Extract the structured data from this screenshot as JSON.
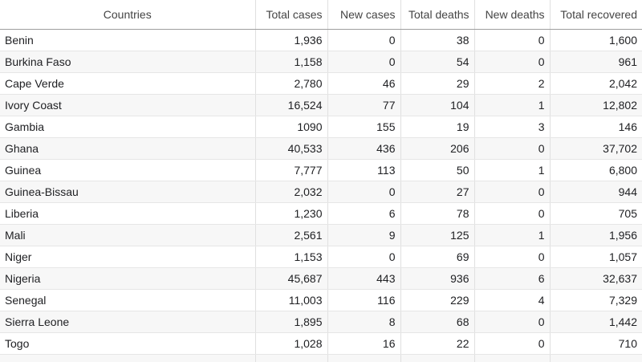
{
  "chart_data": {
    "type": "table",
    "columns": [
      "Countries",
      "Total cases",
      "New cases",
      "Total deaths",
      "New deaths",
      "Total recovered"
    ],
    "rows": [
      [
        "Benin",
        "1,936",
        "0",
        "38",
        "0",
        "1,600"
      ],
      [
        "Burkina Faso",
        "1,158",
        "0",
        "54",
        "0",
        "961"
      ],
      [
        "Cape Verde",
        "2,780",
        "46",
        "29",
        "2",
        "2,042"
      ],
      [
        "Ivory Coast",
        "16,524",
        "77",
        "104",
        "1",
        "12,802"
      ],
      [
        "Gambia",
        "1090",
        "155",
        "19",
        "3",
        "146"
      ],
      [
        "Ghana",
        "40,533",
        "436",
        "206",
        "0",
        "37,702"
      ],
      [
        "Guinea",
        "7,777",
        "113",
        "50",
        "1",
        "6,800"
      ],
      [
        "Guinea-Bissau",
        "2,032",
        "0",
        "27",
        "0",
        "944"
      ],
      [
        "Liberia",
        "1,230",
        "6",
        "78",
        "0",
        "705"
      ],
      [
        "Mali",
        "2,561",
        "9",
        "125",
        "1",
        "1,956"
      ],
      [
        "Niger",
        "1,153",
        "0",
        "69",
        "0",
        "1,057"
      ],
      [
        "Nigeria",
        "45,687",
        "443",
        "936",
        "6",
        "32,637"
      ],
      [
        "Senegal",
        "11,003",
        "116",
        "229",
        "4",
        "7,329"
      ],
      [
        "Sierra Leone",
        "1,895",
        "8",
        "68",
        "0",
        "1,442"
      ],
      [
        "Togo",
        "1,028",
        "16",
        "22",
        "0",
        "710"
      ]
    ]
  }
}
